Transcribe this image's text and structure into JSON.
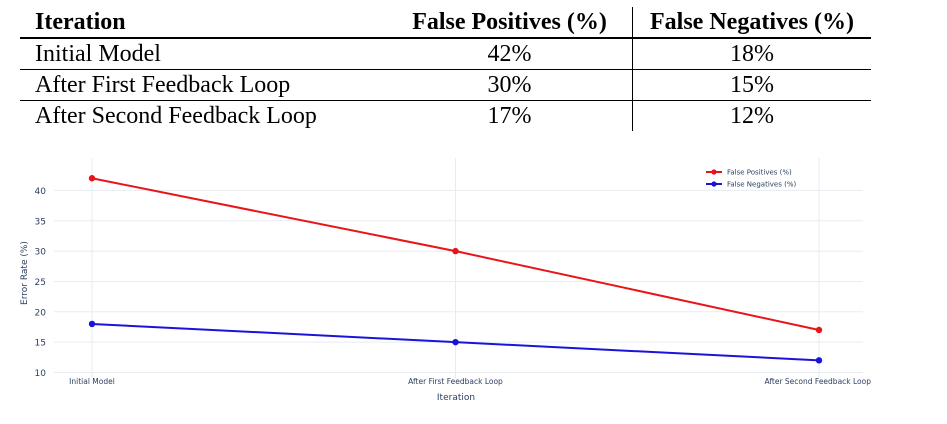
{
  "table": {
    "headers": [
      "Iteration",
      "False Positives (%)",
      "False Negatives (%)"
    ],
    "rows": [
      [
        "Initial Model",
        "42%",
        "18%"
      ],
      [
        "After First Feedback Loop",
        "30%",
        "15%"
      ],
      [
        "After Second Feedback Loop",
        "17%",
        "12%"
      ]
    ]
  },
  "chart_data": {
    "type": "line",
    "categories": [
      "Initial Model",
      "After First Feedback Loop",
      "After Second Feedback Loop"
    ],
    "series": [
      {
        "name": "False Positives (%)",
        "values": [
          42,
          30,
          17
        ],
        "color": "#e8141a"
      },
      {
        "name": "False Negatives (%)",
        "values": [
          18,
          15,
          12
        ],
        "color": "#1a14d8"
      }
    ],
    "xlabel": "Iteration",
    "ylabel": "Error Rate (%)",
    "yticks": [
      10,
      15,
      20,
      25,
      30,
      35,
      40
    ],
    "ylim": [
      10,
      43.5
    ],
    "grid": true,
    "legend": "top-right"
  }
}
